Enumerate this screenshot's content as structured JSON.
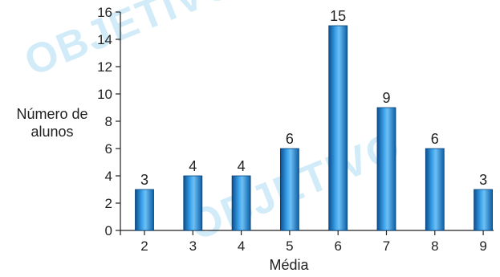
{
  "watermark": {
    "text": "OBJETIVO"
  },
  "chart_data": {
    "type": "bar",
    "title": "",
    "xlabel": "Média",
    "ylabel_lines": [
      "Número de",
      "alunos"
    ],
    "categories": [
      "2",
      "3",
      "4",
      "5",
      "6",
      "7",
      "8",
      "9"
    ],
    "values": [
      3,
      4,
      4,
      6,
      15,
      9,
      6,
      3
    ],
    "ylim": [
      0,
      16
    ],
    "yticks": [
      0,
      2,
      4,
      6,
      8,
      10,
      12,
      14,
      16
    ],
    "grid": false,
    "legend": "none",
    "bar_color": "#1a78c2"
  }
}
